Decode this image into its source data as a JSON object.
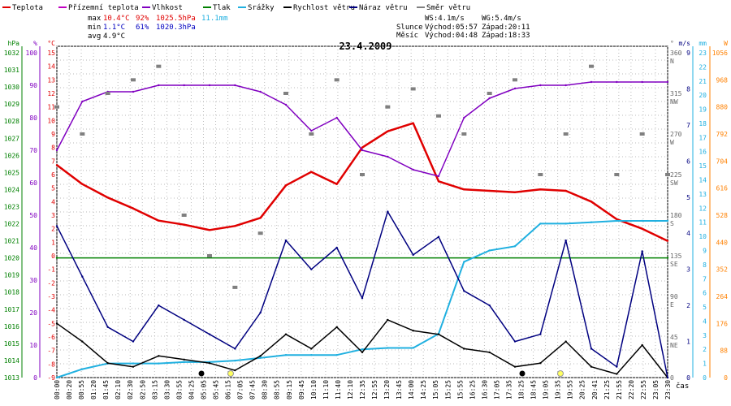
{
  "chart_data": {
    "type": "line",
    "title": "23.4.2009",
    "xlabel": "čas",
    "legend": [
      {
        "name": "Teplota",
        "color": "#e00000"
      },
      {
        "name": "Přízemní teplota",
        "color": "#c000c0"
      },
      {
        "name": "Vlhkost",
        "color": "#8000c0"
      },
      {
        "name": "Tlak",
        "color": "#008000"
      },
      {
        "name": "Srážky",
        "color": "#20b0e0"
      },
      {
        "name": "Rychlost větru",
        "color": "#000000"
      },
      {
        "name": "Náraz větru",
        "color": "#000080"
      },
      {
        "name": "Směr větru",
        "color": "#808080"
      }
    ],
    "stats": {
      "labels": [
        "max",
        "min",
        "avg"
      ],
      "temperature": [
        "10.4°C",
        "1.1°C",
        "4.9°C"
      ],
      "humidity": [
        "92%",
        "61%",
        ""
      ],
      "pressure": [
        "1025.5hPa",
        "1020.3hPa",
        ""
      ],
      "precip": [
        "11.1mm",
        "",
        ""
      ]
    },
    "wind_info": {
      "ws": "WS:4.1m/s",
      "wg": "WG:5.4m/s",
      "sun_label": "Slunce",
      "sun_rise": "Východ:05:57",
      "sun_set": "Západ:20:11",
      "moon_label": "Měsíc",
      "moon_rise": "Východ:04:48",
      "moon_set": "Západ:18:33"
    },
    "axes": {
      "pressure": {
        "unit": "hPa",
        "range": [
          1013,
          1032
        ],
        "ticks": [
          "1032",
          "1031",
          "1030",
          "1029",
          "1028",
          "1027",
          "1026",
          "1025",
          "1024",
          "1023",
          "1022",
          "1021",
          "1020",
          "1019",
          "1018",
          "1017",
          "1016",
          "1015",
          "1014",
          "1013"
        ]
      },
      "humidity": {
        "unit": "%",
        "range": [
          0,
          100
        ],
        "ticks": [
          "100",
          "90",
          "80",
          "70",
          "60",
          "50",
          "40",
          "30",
          "20",
          "10",
          "0"
        ]
      },
      "temperature": {
        "unit": "°C",
        "range": [
          -9,
          15
        ],
        "ticks": [
          "15",
          "14",
          "13",
          "12",
          "11",
          "10",
          "9",
          "8",
          "7",
          "6",
          "5",
          "4",
          "3",
          "2",
          "1",
          "0",
          "-1",
          "-2",
          "-3",
          "-4",
          "-5",
          "-6",
          "-7",
          "-8",
          "-9"
        ]
      },
      "direction": {
        "unit": "°",
        "ticks": [
          "360",
          "315",
          "270",
          "225",
          "180",
          "135",
          "90",
          "45",
          "0"
        ],
        "compass": [
          "N",
          "NW",
          "W",
          "SW",
          "S",
          "SE",
          "E",
          "NE",
          ""
        ]
      },
      "wind": {
        "unit": "m/s",
        "range": [
          0,
          9
        ],
        "ticks": [
          "9",
          "8",
          "7",
          "6",
          "5",
          "4",
          "3",
          "2",
          "1",
          "0"
        ]
      },
      "precip": {
        "unit": "mm",
        "range": [
          0,
          23
        ],
        "ticks": [
          "23",
          "22",
          "21",
          "20",
          "19",
          "18",
          "17",
          "16",
          "15",
          "14",
          "13",
          "12",
          "11",
          "10",
          "9",
          "8",
          "7",
          "6",
          "5",
          "4",
          "3",
          "2",
          "1",
          "0"
        ]
      },
      "radiation": {
        "unit": "W",
        "range": [
          0,
          1056
        ],
        "ticks": [
          "1056",
          "968",
          "880",
          "792",
          "704",
          "616",
          "528",
          "440",
          "352",
          "264",
          "176",
          "88",
          "0"
        ]
      }
    },
    "x_ticks": [
      "00:00",
      "00:20",
      "00:55",
      "01:20",
      "01:45",
      "02:10",
      "02:30",
      "02:50",
      "03:15",
      "03:30",
      "03:55",
      "04:25",
      "05:05",
      "05:45",
      "06:15",
      "07:05",
      "07:45",
      "08:30",
      "08:55",
      "09:15",
      "09:45",
      "10:10",
      "11:10",
      "11:40",
      "12:10",
      "12:35",
      "12:55",
      "13:20",
      "13:45",
      "14:00",
      "14:25",
      "15:05",
      "15:25",
      "15:55",
      "16:25",
      "16:30",
      "17:05",
      "17:35",
      "18:25",
      "18:45",
      "19:05",
      "19:35",
      "19:55",
      "20:25",
      "20:41",
      "21:25",
      "21:55",
      "22:20",
      "22:55",
      "23:05",
      "23:30"
    ],
    "series": [
      {
        "name": "Teplota",
        "unit": "°C",
        "x_hours": [
          0,
          1,
          2,
          3,
          4,
          5,
          6,
          7,
          8,
          9,
          10,
          11,
          12,
          13,
          14,
          15,
          16,
          17,
          18,
          19,
          20,
          21,
          22,
          23,
          24
        ],
        "values": [
          6.7,
          5.3,
          4.3,
          3.5,
          2.6,
          2.3,
          1.9,
          2.2,
          2.8,
          5.2,
          6.2,
          5.3,
          8.0,
          9.2,
          9.8,
          5.5,
          4.9,
          4.8,
          4.7,
          4.9,
          4.8,
          4.0,
          2.7,
          2.0,
          1.1
        ]
      },
      {
        "name": "Vlhkost",
        "unit": "%",
        "x_hours": [
          0,
          1,
          2,
          3,
          4,
          5,
          6,
          7,
          8,
          9,
          10,
          11,
          12,
          13,
          14,
          15,
          16,
          17,
          18,
          19,
          20,
          21,
          22,
          23,
          24
        ],
        "values": [
          70,
          85,
          88,
          88,
          90,
          90,
          90,
          90,
          88,
          84,
          76,
          80,
          70,
          68,
          64,
          62,
          80,
          86,
          89,
          90,
          90,
          91,
          91,
          91,
          91
        ]
      },
      {
        "name": "Tlak",
        "unit": "hPa",
        "x_hours": [
          0,
          24
        ],
        "values": [
          1020,
          1020
        ]
      },
      {
        "name": "Srážky",
        "unit": "mm",
        "x_hours": [
          0,
          1,
          2,
          3,
          4,
          5,
          6,
          7,
          8,
          9,
          10,
          11,
          12,
          13,
          14,
          15,
          16,
          17,
          18,
          19,
          20,
          21,
          22,
          23,
          24
        ],
        "values": [
          0,
          0.6,
          1.0,
          1.0,
          1.0,
          1.1,
          1.1,
          1.2,
          1.4,
          1.6,
          1.6,
          1.6,
          2.0,
          2.1,
          2.1,
          3.1,
          8.2,
          9.0,
          9.3,
          10.9,
          10.9,
          11.0,
          11.1,
          11.1,
          11.1
        ]
      },
      {
        "name": "Rychlost větru",
        "unit": "m/s",
        "x_hours": [
          0,
          1,
          2,
          3,
          4,
          5,
          6,
          7,
          8,
          9,
          10,
          11,
          12,
          13,
          14,
          15,
          16,
          17,
          18,
          19,
          20,
          21,
          22,
          23,
          24
        ],
        "values": [
          1.5,
          1.0,
          0.4,
          0.3,
          0.6,
          0.5,
          0.4,
          0.2,
          0.6,
          1.2,
          0.8,
          1.4,
          0.7,
          1.6,
          1.3,
          1.2,
          0.8,
          0.7,
          0.3,
          0.4,
          1.0,
          0.3,
          0.1,
          0.9,
          0.0
        ]
      },
      {
        "name": "Náraz větru",
        "unit": "m/s",
        "x_hours": [
          0,
          1,
          2,
          3,
          4,
          5,
          6,
          7,
          8,
          9,
          10,
          11,
          12,
          13,
          14,
          15,
          16,
          17,
          18,
          19,
          20,
          21,
          22,
          23,
          24
        ],
        "values": [
          4.2,
          2.8,
          1.4,
          1.0,
          2.0,
          1.6,
          1.2,
          0.8,
          1.8,
          3.8,
          3.0,
          3.6,
          2.2,
          4.6,
          3.4,
          3.9,
          2.4,
          2.0,
          1.0,
          1.2,
          3.8,
          0.8,
          0.3,
          3.5,
          0.0
        ]
      },
      {
        "name": "Směr větru",
        "unit": "°",
        "x_hours": [
          0,
          1,
          2,
          3,
          4,
          5,
          6,
          7,
          8,
          9,
          10,
          11,
          12,
          13,
          14,
          15,
          16,
          17,
          18,
          19,
          20,
          21,
          22,
          23,
          24
        ],
        "values": [
          300,
          270,
          315,
          330,
          345,
          180,
          135,
          100,
          160,
          315,
          270,
          330,
          225,
          300,
          320,
          290,
          270,
          315,
          330,
          225,
          270,
          345,
          225,
          270,
          225
        ]
      }
    ]
  }
}
